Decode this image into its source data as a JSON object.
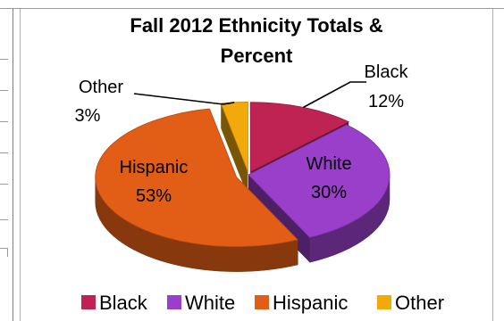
{
  "chart_data": {
    "type": "pie",
    "title_lines": [
      "Fall 2012 Ethnicity Totals &",
      "Percent"
    ],
    "categories": [
      "Black",
      "White",
      "Hispanic",
      "Other"
    ],
    "values": [
      12,
      30,
      53,
      3
    ],
    "labels": [
      "12%",
      "30%",
      "53%",
      "3%"
    ],
    "colors": [
      "#be2354",
      "#9a3fc9",
      "#e25d16",
      "#f2a90c"
    ],
    "exploded": true,
    "three_d": true,
    "legend_position": "bottom"
  }
}
